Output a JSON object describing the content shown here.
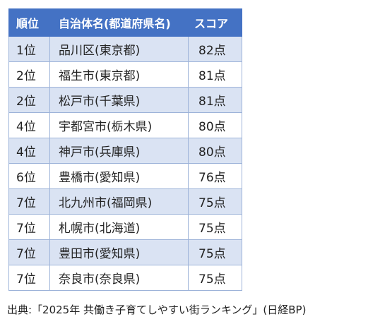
{
  "table": {
    "headers": {
      "rank": "順位",
      "city": "自治体名(都道府県名)",
      "score": "スコア"
    },
    "rows": [
      {
        "rank": "1位",
        "city": "品川区(東京都)",
        "score": "82点"
      },
      {
        "rank": "2位",
        "city": "福生市(東京都)",
        "score": "81点"
      },
      {
        "rank": "2位",
        "city": "松戸市(千葉県)",
        "score": "81点"
      },
      {
        "rank": "4位",
        "city": "宇都宮市(栃木県)",
        "score": "80点"
      },
      {
        "rank": "4位",
        "city": "神戸市(兵庫県)",
        "score": "80点"
      },
      {
        "rank": "6位",
        "city": "豊橋市(愛知県)",
        "score": "76点"
      },
      {
        "rank": "7位",
        "city": "北九州市(福岡県)",
        "score": "75点"
      },
      {
        "rank": "7位",
        "city": "札幌市(北海道)",
        "score": "75点"
      },
      {
        "rank": "7位",
        "city": "豊田市(愛知県)",
        "score": "75点"
      },
      {
        "rank": "7位",
        "city": "奈良市(奈良県)",
        "score": "75点"
      }
    ]
  },
  "source": "出典:「2025年 共働き子育てしやすい街ランキング」(日経BP)",
  "colors": {
    "header_bg": "#4472c4",
    "header_text": "#ffffff",
    "stripe_bg": "#dae3f3",
    "row_bg": "#ffffff",
    "border": "#9db3d9"
  }
}
